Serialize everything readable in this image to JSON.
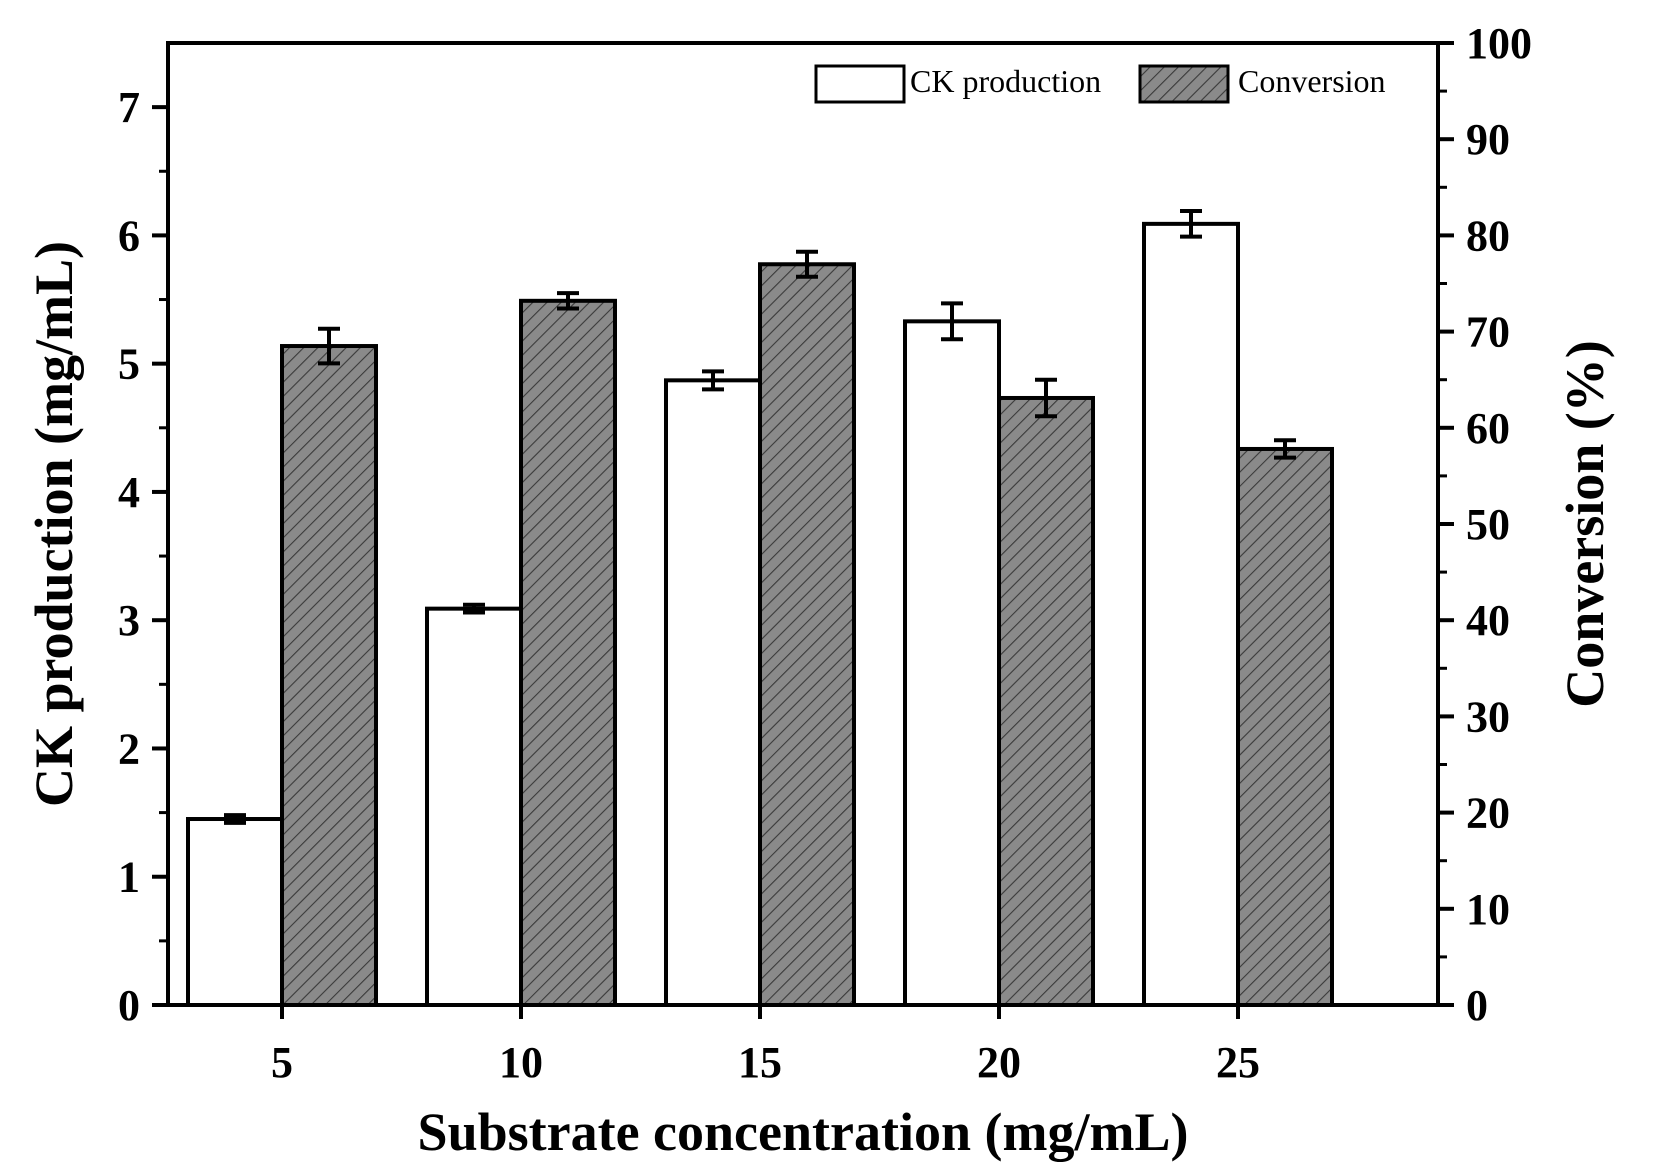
{
  "chart_data": {
    "type": "bar",
    "categories": [
      "5",
      "10",
      "15",
      "20",
      "25"
    ],
    "xlabel": "Substrate concentration (mg/mL)",
    "ylabel": "CK production (mg/mL)",
    "y2label": "Conversion (%)",
    "ylim": [
      0,
      7.5
    ],
    "y2lim": [
      0,
      100
    ],
    "yticks": [
      0,
      1,
      2,
      3,
      4,
      5,
      6,
      7
    ],
    "y2ticks": [
      0,
      10,
      20,
      30,
      40,
      50,
      60,
      70,
      80,
      90,
      100
    ],
    "series": [
      {
        "name": "CK production",
        "axis": "left",
        "values": [
          1.45,
          3.09,
          4.87,
          5.33,
          6.09
        ],
        "errors": [
          0.03,
          0.03,
          0.07,
          0.14,
          0.1
        ],
        "fill": "#ffffff",
        "pattern": "none"
      },
      {
        "name": "Conversion",
        "axis": "right",
        "values": [
          68.5,
          73.2,
          77.0,
          63.1,
          57.8
        ],
        "errors": [
          1.8,
          0.8,
          1.3,
          1.9,
          0.9
        ],
        "fill": "#8a8a8a",
        "pattern": "hatch"
      }
    ],
    "legend": {
      "position": "top-right"
    }
  }
}
